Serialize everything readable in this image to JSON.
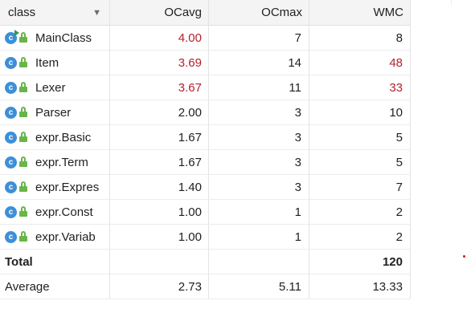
{
  "columns": {
    "name": "class",
    "ocavg": "OCavg",
    "ocmax": "OCmax",
    "wmc": "WMC"
  },
  "icons": {
    "class": "class-icon",
    "runnable_badge": "run-icon",
    "visibility": "lock-icon"
  },
  "colors": {
    "highlight_red": "#b3212c",
    "class_icon_blue": "#3d8fd8",
    "lock_green": "#69b54a"
  },
  "rows": [
    {
      "name": "MainClass",
      "ocavg": "4.00",
      "ocmax": "7",
      "wmc": "8"
    },
    {
      "name": "Item",
      "ocavg": "3.69",
      "ocmax": "14",
      "wmc": "48"
    },
    {
      "name": "Lexer",
      "ocavg": "3.67",
      "ocmax": "11",
      "wmc": "33"
    },
    {
      "name": "Parser",
      "ocavg": "2.00",
      "ocmax": "3",
      "wmc": "10"
    },
    {
      "name": "expr.Basic",
      "ocavg": "1.67",
      "ocmax": "3",
      "wmc": "5"
    },
    {
      "name": "expr.Term",
      "ocavg": "1.67",
      "ocmax": "3",
      "wmc": "5"
    },
    {
      "name": "expr.Expres",
      "ocavg": "1.40",
      "ocmax": "3",
      "wmc": "7"
    },
    {
      "name": "expr.Const",
      "ocavg": "1.00",
      "ocmax": "1",
      "wmc": "2"
    },
    {
      "name": "expr.Variab",
      "ocavg": "1.00",
      "ocmax": "1",
      "wmc": "2"
    }
  ],
  "total": {
    "label": "Total",
    "ocavg": "",
    "ocmax": "",
    "wmc": "120"
  },
  "average": {
    "label": "Average",
    "ocavg": "2.73",
    "ocmax": "5.11",
    "wmc": "13.33"
  }
}
